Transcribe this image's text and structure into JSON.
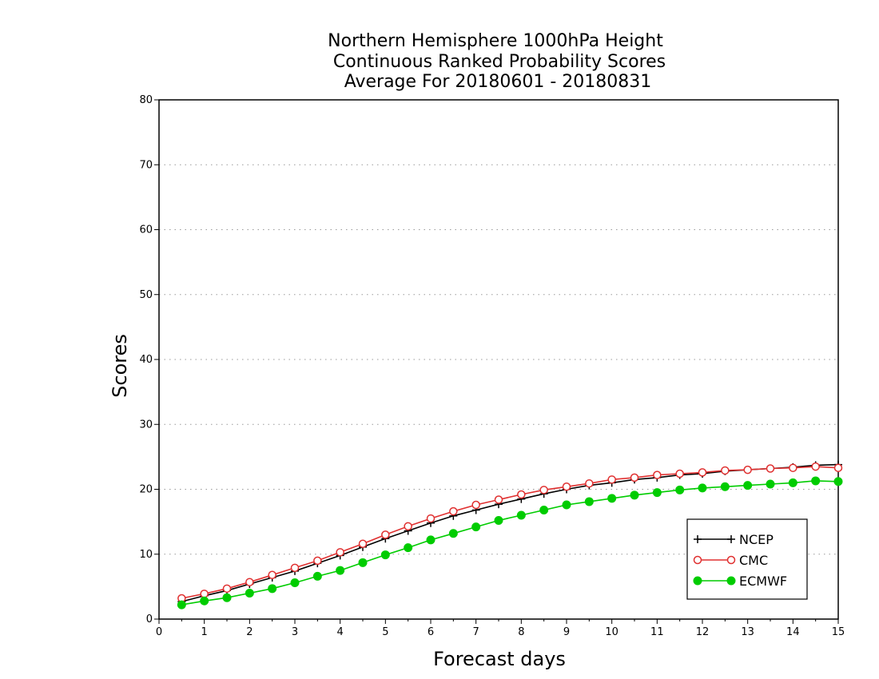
{
  "chart_data": {
    "type": "line",
    "title_lines": [
      "Northern Hemisphere 1000hPa Height",
      "Continuous Ranked Probability Scores",
      "Average For 20180601 - 20180831"
    ],
    "xlabel": "Forecast days",
    "ylabel": "Scores",
    "xlim": [
      0,
      15
    ],
    "ylim": [
      0,
      80
    ],
    "xticks": [
      0,
      1,
      2,
      3,
      4,
      5,
      6,
      7,
      8,
      9,
      10,
      11,
      12,
      13,
      14,
      15
    ],
    "yticks": [
      0,
      10,
      20,
      30,
      40,
      50,
      60,
      70,
      80
    ],
    "grid": "horizontal dotted",
    "legend_position": "bottom-right",
    "x": [
      0.5,
      1,
      1.5,
      2,
      2.5,
      3,
      3.5,
      4,
      4.5,
      5,
      5.5,
      6,
      6.5,
      7,
      7.5,
      8,
      8.5,
      9,
      9.5,
      10,
      10.5,
      11,
      11.5,
      12,
      12.5,
      13,
      13.5,
      14,
      14.5,
      15
    ],
    "series": [
      {
        "name": "NCEP",
        "color": "#000000",
        "marker": "plus",
        "values": [
          2.7,
          3.6,
          4.4,
          5.4,
          6.4,
          7.4,
          8.6,
          9.8,
          11.1,
          12.4,
          13.6,
          14.8,
          15.9,
          16.8,
          17.7,
          18.5,
          19.3,
          20.0,
          20.6,
          21.0,
          21.5,
          21.8,
          22.2,
          22.4,
          22.8,
          23.0,
          23.2,
          23.4,
          23.7,
          23.8
        ]
      },
      {
        "name": "CMC",
        "color": "#e03030",
        "marker": "open-circle",
        "values": [
          3.2,
          3.9,
          4.7,
          5.7,
          6.8,
          7.9,
          9.0,
          10.3,
          11.6,
          13.0,
          14.3,
          15.5,
          16.6,
          17.6,
          18.4,
          19.2,
          19.9,
          20.4,
          20.9,
          21.5,
          21.8,
          22.2,
          22.4,
          22.6,
          22.9,
          23.0,
          23.2,
          23.3,
          23.5,
          23.3
        ]
      },
      {
        "name": "ECMWF",
        "color": "#00cc00",
        "marker": "filled-circle",
        "values": [
          2.2,
          2.8,
          3.3,
          4.0,
          4.7,
          5.6,
          6.6,
          7.5,
          8.7,
          9.9,
          11.0,
          12.2,
          13.2,
          14.2,
          15.2,
          16.0,
          16.8,
          17.6,
          18.1,
          18.6,
          19.1,
          19.5,
          19.9,
          20.2,
          20.4,
          20.6,
          20.8,
          21.0,
          21.3,
          21.2
        ]
      }
    ]
  }
}
